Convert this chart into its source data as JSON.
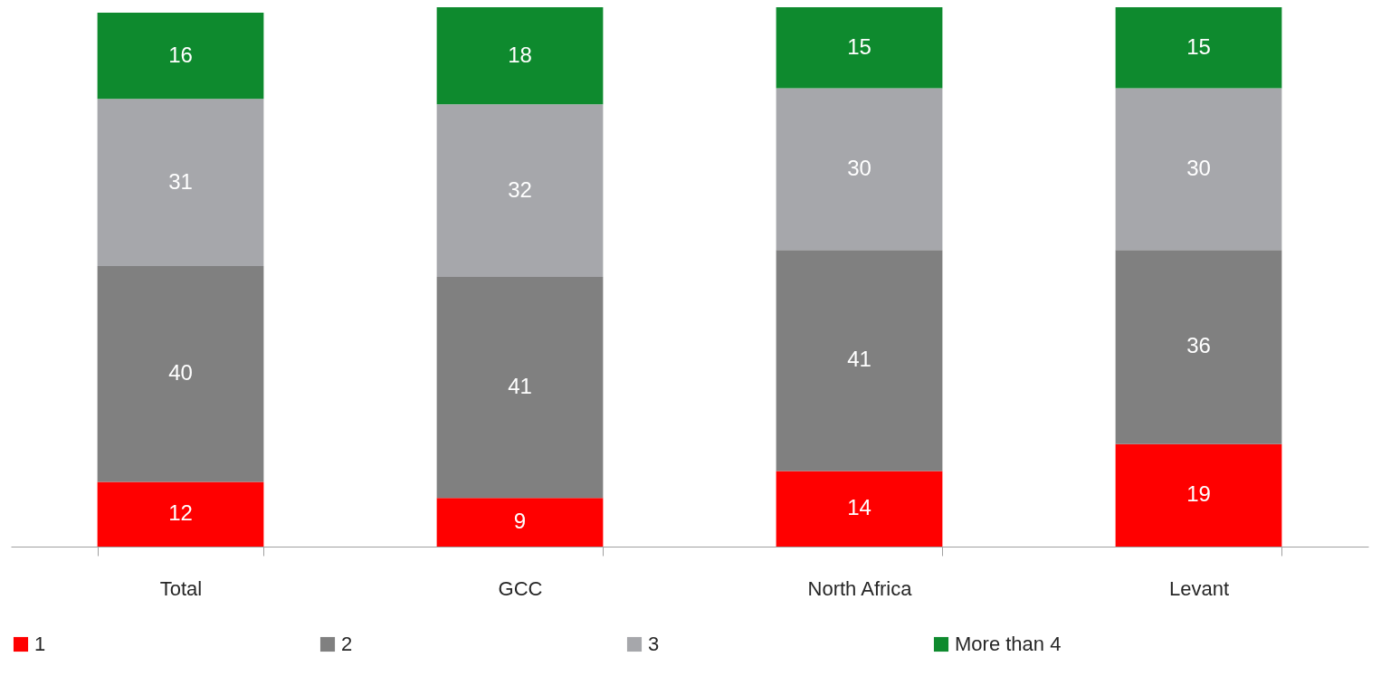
{
  "chart_data": {
    "type": "bar",
    "stacked": true,
    "data_labels": true,
    "legend": "bottom",
    "grid": false,
    "categories": [
      "Total",
      "GCC",
      "North Africa",
      "Levant"
    ],
    "series": [
      {
        "name": "1",
        "color": "#ff0000",
        "values": [
          12,
          9,
          14,
          19
        ]
      },
      {
        "name": "2",
        "color": "#808080",
        "values": [
          40,
          41,
          41,
          36
        ]
      },
      {
        "name": "3",
        "color": "#a6a7ab",
        "values": [
          31,
          32,
          30,
          30
        ]
      },
      {
        "name": "More than 4",
        "color": "#0e8a2e",
        "values": [
          16,
          18,
          15,
          15
        ]
      }
    ]
  }
}
